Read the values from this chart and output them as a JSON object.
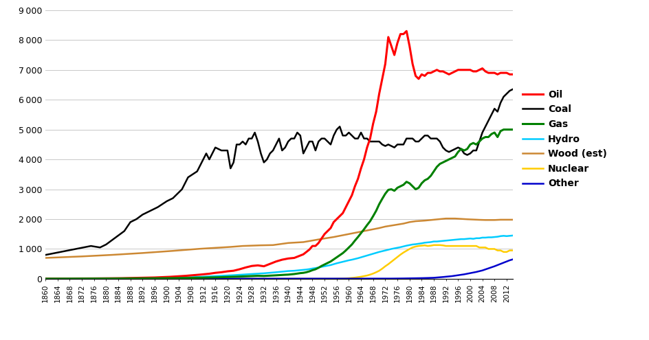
{
  "background_color": "#ffffff",
  "grid_color": "#c8c8c8",
  "ylim": [
    0,
    9000
  ],
  "yticks": [
    0,
    1000,
    2000,
    3000,
    4000,
    5000,
    6000,
    7000,
    8000,
    9000
  ],
  "xlim_start": 1860,
  "xlim_end": 2014,
  "series": {
    "Oil": {
      "color": "#ff0000",
      "lw": 2.2
    },
    "Coal": {
      "color": "#000000",
      "lw": 1.8
    },
    "Gas": {
      "color": "#008000",
      "lw": 2.2
    },
    "Hydro": {
      "color": "#00ccff",
      "lw": 1.8
    },
    "Wood (est)": {
      "color": "#cc8833",
      "lw": 1.8
    },
    "Nuclear": {
      "color": "#ffcc00",
      "lw": 1.8
    },
    "Other": {
      "color": "#0000cc",
      "lw": 1.8
    }
  },
  "legend_order": [
    "Oil",
    "Coal",
    "Gas",
    "Hydro",
    "Wood (est)",
    "Nuclear",
    "Other"
  ],
  "legend_fontsize": 10,
  "tick_fontsize": 7.5,
  "ytick_fontsize": 9
}
